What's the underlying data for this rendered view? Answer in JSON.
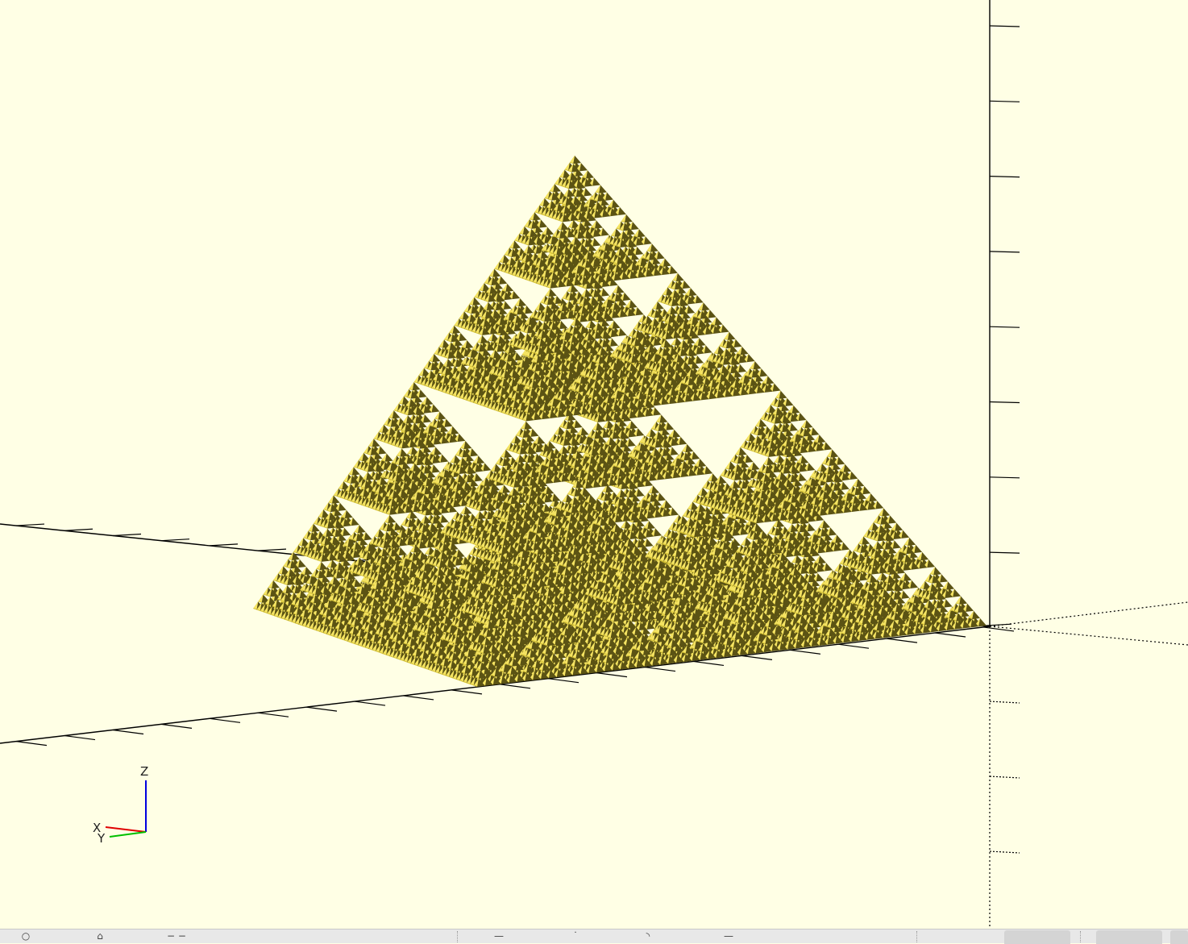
{
  "viewport": {
    "background": "#ffffe5",
    "model": {
      "name": "sierpinski-tetrahedron",
      "color_light": "#f5e463",
      "color_mid": "#d7c436",
      "color_dark": "#5b5314",
      "recursion_depth": 6
    },
    "axes_color": "#000000"
  },
  "axes_gizmo": {
    "z_label": "Z",
    "x_label": "X",
    "y_label": "Y",
    "x_color": "#e00000",
    "y_color": "#00c000",
    "z_color": "#0000e0"
  },
  "statusbar": {
    "icons": [
      "reset-view-icon",
      "home-view-icon",
      "zoom-icon",
      "perspective-icon",
      "orthogonal-icon",
      "axes-icon",
      "crosshair-icon",
      "edges-icon"
    ]
  }
}
